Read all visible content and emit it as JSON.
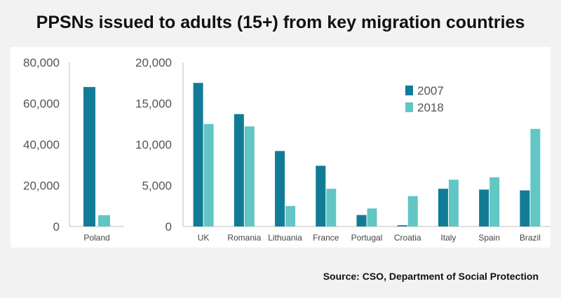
{
  "title": "PPSNs issued to adults (15+) from key migration countries",
  "source": "Source: CSO, Department of Social Protection",
  "colors": {
    "s2007": "#127c96",
    "s2018": "#62c6c4",
    "axis": "#bfbfbf",
    "background": "#f2f2f2",
    "panel": "#ffffff"
  },
  "chart_data": [
    {
      "type": "bar",
      "categories": [
        "Poland"
      ],
      "series": [
        {
          "name": "2007",
          "values": [
            68000
          ]
        },
        {
          "name": "2018",
          "values": [
            5500
          ]
        }
      ],
      "ylim": [
        0,
        80000
      ],
      "yticks": [
        "0",
        "20,000",
        "40,000",
        "60,000",
        "80,000"
      ],
      "legend": "none"
    },
    {
      "type": "bar",
      "categories": [
        "UK",
        "Romania",
        "Lithuania",
        "France",
        "Portugal",
        "Croatia",
        "Italy",
        "Spain",
        "Brazil"
      ],
      "series": [
        {
          "name": "2007",
          "values": [
            17500,
            13700,
            9200,
            7400,
            1400,
            150,
            4600,
            4500,
            4400
          ]
        },
        {
          "name": "2018",
          "values": [
            12500,
            12200,
            2500,
            4600,
            2200,
            3700,
            5700,
            6000,
            11900
          ]
        }
      ],
      "ylim": [
        0,
        20000
      ],
      "yticks": [
        "0",
        "5,000",
        "10,000",
        "15,000",
        "20,000"
      ],
      "legend": "top-right"
    }
  ]
}
